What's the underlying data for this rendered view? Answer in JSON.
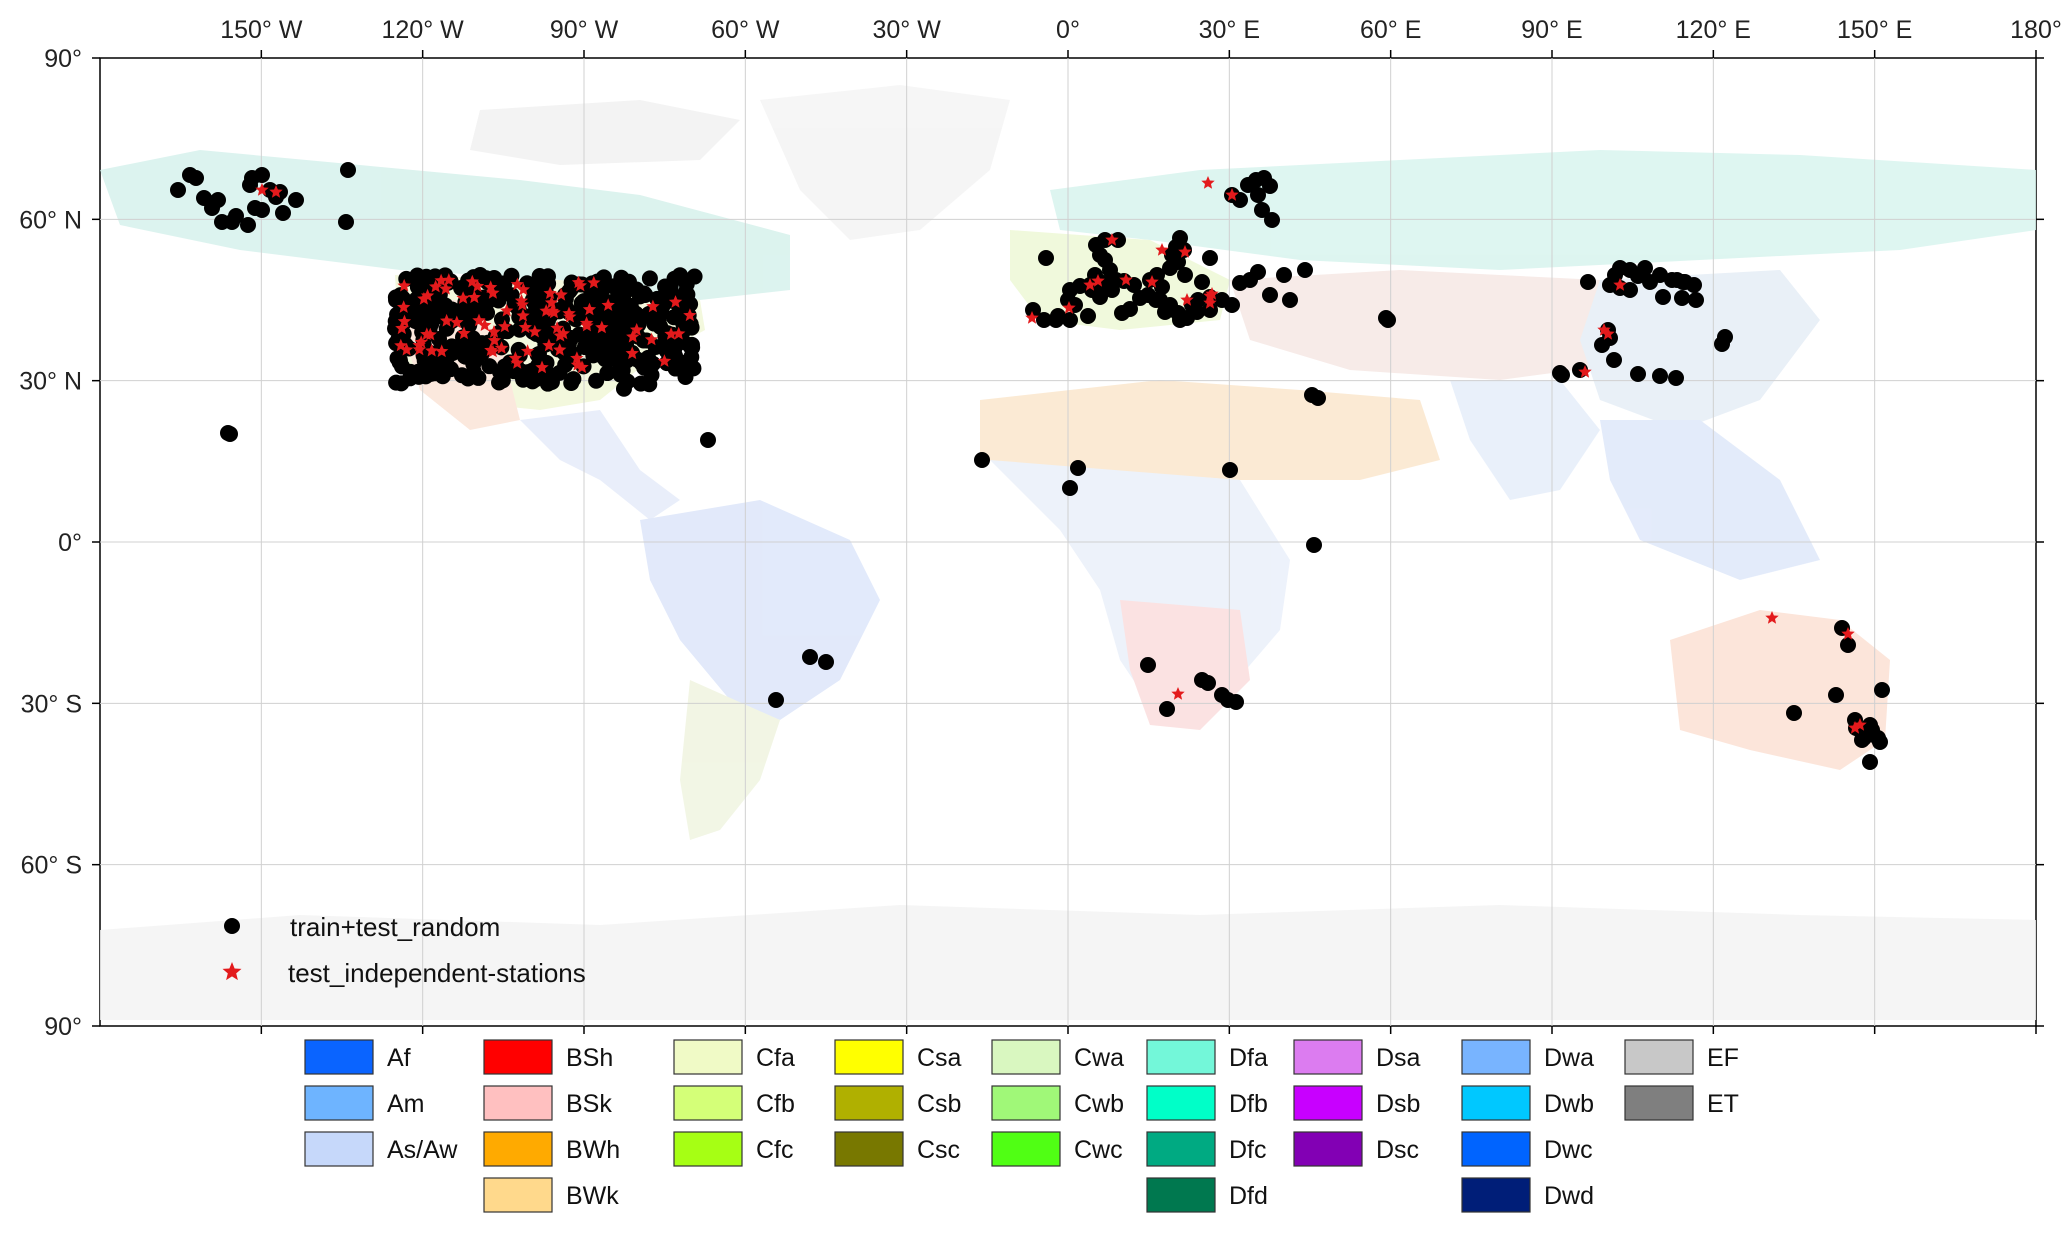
{
  "map": {
    "lon_ticks": [
      "150° W",
      "120° W",
      "90° W",
      "60° W",
      "30° W",
      "0°",
      "30° E",
      "60° E",
      "90° E",
      "120° E",
      "150° E",
      "180°"
    ],
    "lat_ticks": [
      "90°",
      "60° N",
      "30° N",
      "0°",
      "30° S",
      "60° S",
      "90°"
    ]
  },
  "markers_legend": {
    "circle_label": "train+test_random",
    "star_label": "test_independent-stations",
    "circle_color": "#000000",
    "star_color": "#e31a1c"
  },
  "climate_legend": [
    {
      "code": "Af",
      "color": "#0a64ff"
    },
    {
      "code": "Am",
      "color": "#6eb4ff"
    },
    {
      "code": "As/Aw",
      "color": "#c6d8fa"
    },
    {
      "code": "BSh",
      "color": "#ff0000"
    },
    {
      "code": "BSk",
      "color": "#ffc0c0"
    },
    {
      "code": "BWh",
      "color": "#ffaa00"
    },
    {
      "code": "BWk",
      "color": "#ffd98c"
    },
    {
      "code": "Cfa",
      "color": "#f0fac6"
    },
    {
      "code": "Cfb",
      "color": "#d4ff78"
    },
    {
      "code": "Cfc",
      "color": "#a6ff14"
    },
    {
      "code": "Csa",
      "color": "#ffff00"
    },
    {
      "code": "Csb",
      "color": "#b0b000"
    },
    {
      "code": "Csc",
      "color": "#787800"
    },
    {
      "code": "Cwa",
      "color": "#d9f7c0"
    },
    {
      "code": "Cwb",
      "color": "#a0f878"
    },
    {
      "code": "Cwc",
      "color": "#50ff14"
    },
    {
      "code": "Dfa",
      "color": "#73f7d9"
    },
    {
      "code": "Dfb",
      "color": "#00ffc8"
    },
    {
      "code": "Dfc",
      "color": "#00aa82"
    },
    {
      "code": "Dfd",
      "color": "#00784f"
    },
    {
      "code": "Dsa",
      "color": "#dc7cf0"
    },
    {
      "code": "Dsb",
      "color": "#c800ff"
    },
    {
      "code": "Dsc",
      "color": "#8200b4"
    },
    {
      "code": "Dwa",
      "color": "#78b4ff"
    },
    {
      "code": "Dwb",
      "color": "#00c8ff"
    },
    {
      "code": "Dwc",
      "color": "#0064ff"
    },
    {
      "code": "Dwd",
      "color": "#001e78"
    },
    {
      "code": "EF",
      "color": "#c8c8c8"
    },
    {
      "code": "ET",
      "color": "#7f7f7f"
    }
  ]
}
